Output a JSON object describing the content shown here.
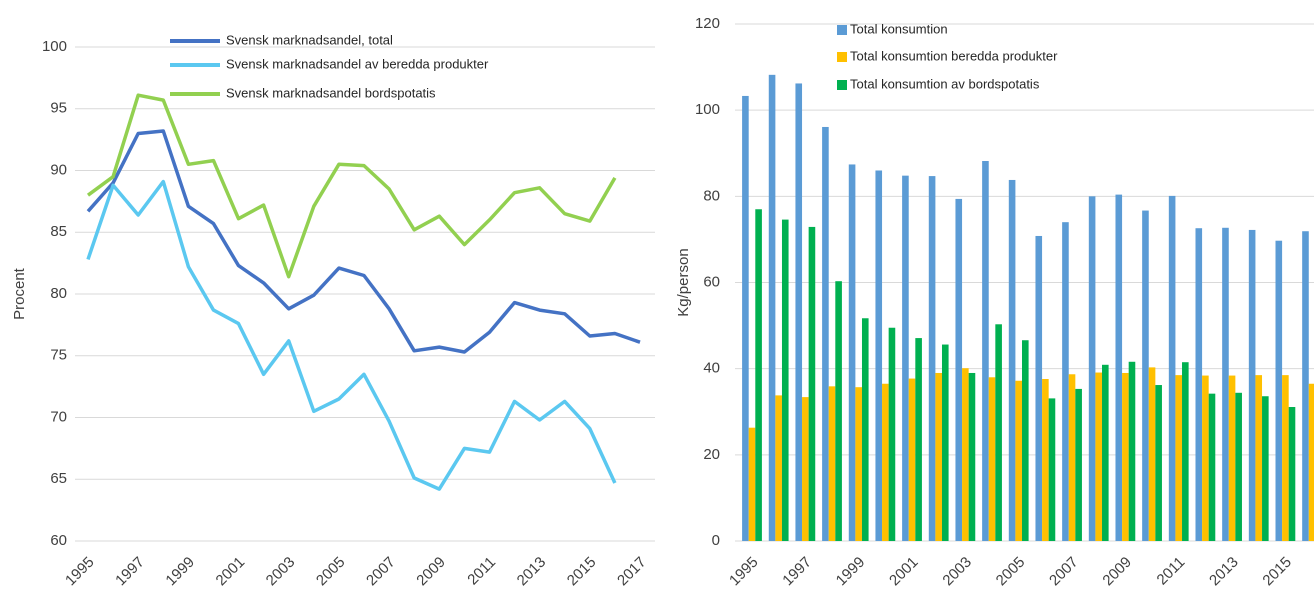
{
  "chart_data": [
    {
      "type": "line",
      "y_label": "Procent",
      "x": [
        1995,
        1996,
        1997,
        1998,
        1999,
        2000,
        2001,
        2002,
        2003,
        2004,
        2005,
        2006,
        2007,
        2008,
        2009,
        2010,
        2011,
        2012,
        2013,
        2014,
        2015,
        2016,
        2017
      ],
      "xlim": [
        1995,
        2017
      ],
      "xticks": [
        1995,
        1997,
        1999,
        2001,
        2003,
        2005,
        2007,
        2009,
        2011,
        2013,
        2015,
        2017
      ],
      "ylim": [
        60,
        100
      ],
      "yticks": [
        60,
        65,
        70,
        75,
        80,
        85,
        90,
        95,
        100
      ],
      "grid": true,
      "series": [
        {
          "name": "Svensk marknadsandel, total",
          "color": "#4472c4",
          "values": [
            86.7,
            89.0,
            93.0,
            93.2,
            87.1,
            85.7,
            82.3,
            80.9,
            78.8,
            79.9,
            82.1,
            81.5,
            78.8,
            75.4,
            75.7,
            75.3,
            76.9,
            79.3,
            78.7,
            78.4,
            76.6,
            76.8,
            76.1
          ]
        },
        {
          "name": "Svensk marknadsandel av beredda produkter",
          "color": "#5bc8f0",
          "values": [
            82.8,
            88.8,
            86.4,
            89.1,
            82.2,
            78.7,
            77.6,
            73.5,
            76.2,
            70.5,
            71.5,
            73.5,
            69.7,
            65.1,
            64.2,
            67.5,
            67.2,
            71.3,
            69.8,
            71.3,
            69.1,
            64.7,
            null
          ]
        },
        {
          "name": "Svensk marknadsandel bordspotatis",
          "color": "#92d050",
          "values": [
            88.0,
            89.5,
            96.1,
            95.7,
            90.5,
            90.8,
            86.1,
            87.2,
            81.4,
            87.1,
            90.5,
            90.4,
            88.5,
            85.2,
            86.3,
            84.0,
            86.0,
            88.2,
            88.6,
            86.5,
            85.9,
            89.4,
            null
          ]
        }
      ]
    },
    {
      "type": "bar",
      "y_label": "Kg/person",
      "categories": [
        "1995",
        null,
        "1997",
        null,
        "1999",
        null,
        "2001",
        null,
        "2003",
        null,
        "2005",
        null,
        "2007",
        null,
        "2009",
        null,
        "2011",
        null,
        "2013",
        null,
        "2015",
        null
      ],
      "ylim": [
        0,
        120
      ],
      "yticks": [
        0,
        20,
        40,
        60,
        80,
        100,
        120
      ],
      "grid": true,
      "series": [
        {
          "name": "Total konsumtion",
          "color": "#5b9bd5",
          "values": [
            103.3,
            108.2,
            106.2,
            96.1,
            87.4,
            86.0,
            84.8,
            84.7,
            79.4,
            88.2,
            83.8,
            70.8,
            74.0,
            80.0,
            80.4,
            76.7,
            80.1,
            72.6,
            72.7,
            72.2,
            69.7,
            71.9
          ]
        },
        {
          "name": "Total konsumtion beredda produkter",
          "color": "#ffc000",
          "values": [
            26.3,
            33.8,
            33.4,
            35.9,
            35.7,
            36.5,
            37.7,
            39.0,
            40.1,
            38.0,
            37.2,
            37.6,
            38.7,
            39.1,
            39.0,
            40.3,
            38.5,
            38.4,
            38.4,
            38.5,
            38.5,
            36.5
          ]
        },
        {
          "name": "Total konsumtion av bordspotatis",
          "color": "#00b050",
          "values": [
            77.0,
            74.6,
            72.9,
            60.3,
            51.7,
            49.5,
            47.1,
            45.6,
            39.0,
            50.3,
            46.6,
            33.1,
            35.3,
            40.9,
            41.6,
            36.2,
            41.5,
            34.2,
            34.4,
            33.6,
            31.1,
            null
          ]
        }
      ]
    }
  ]
}
